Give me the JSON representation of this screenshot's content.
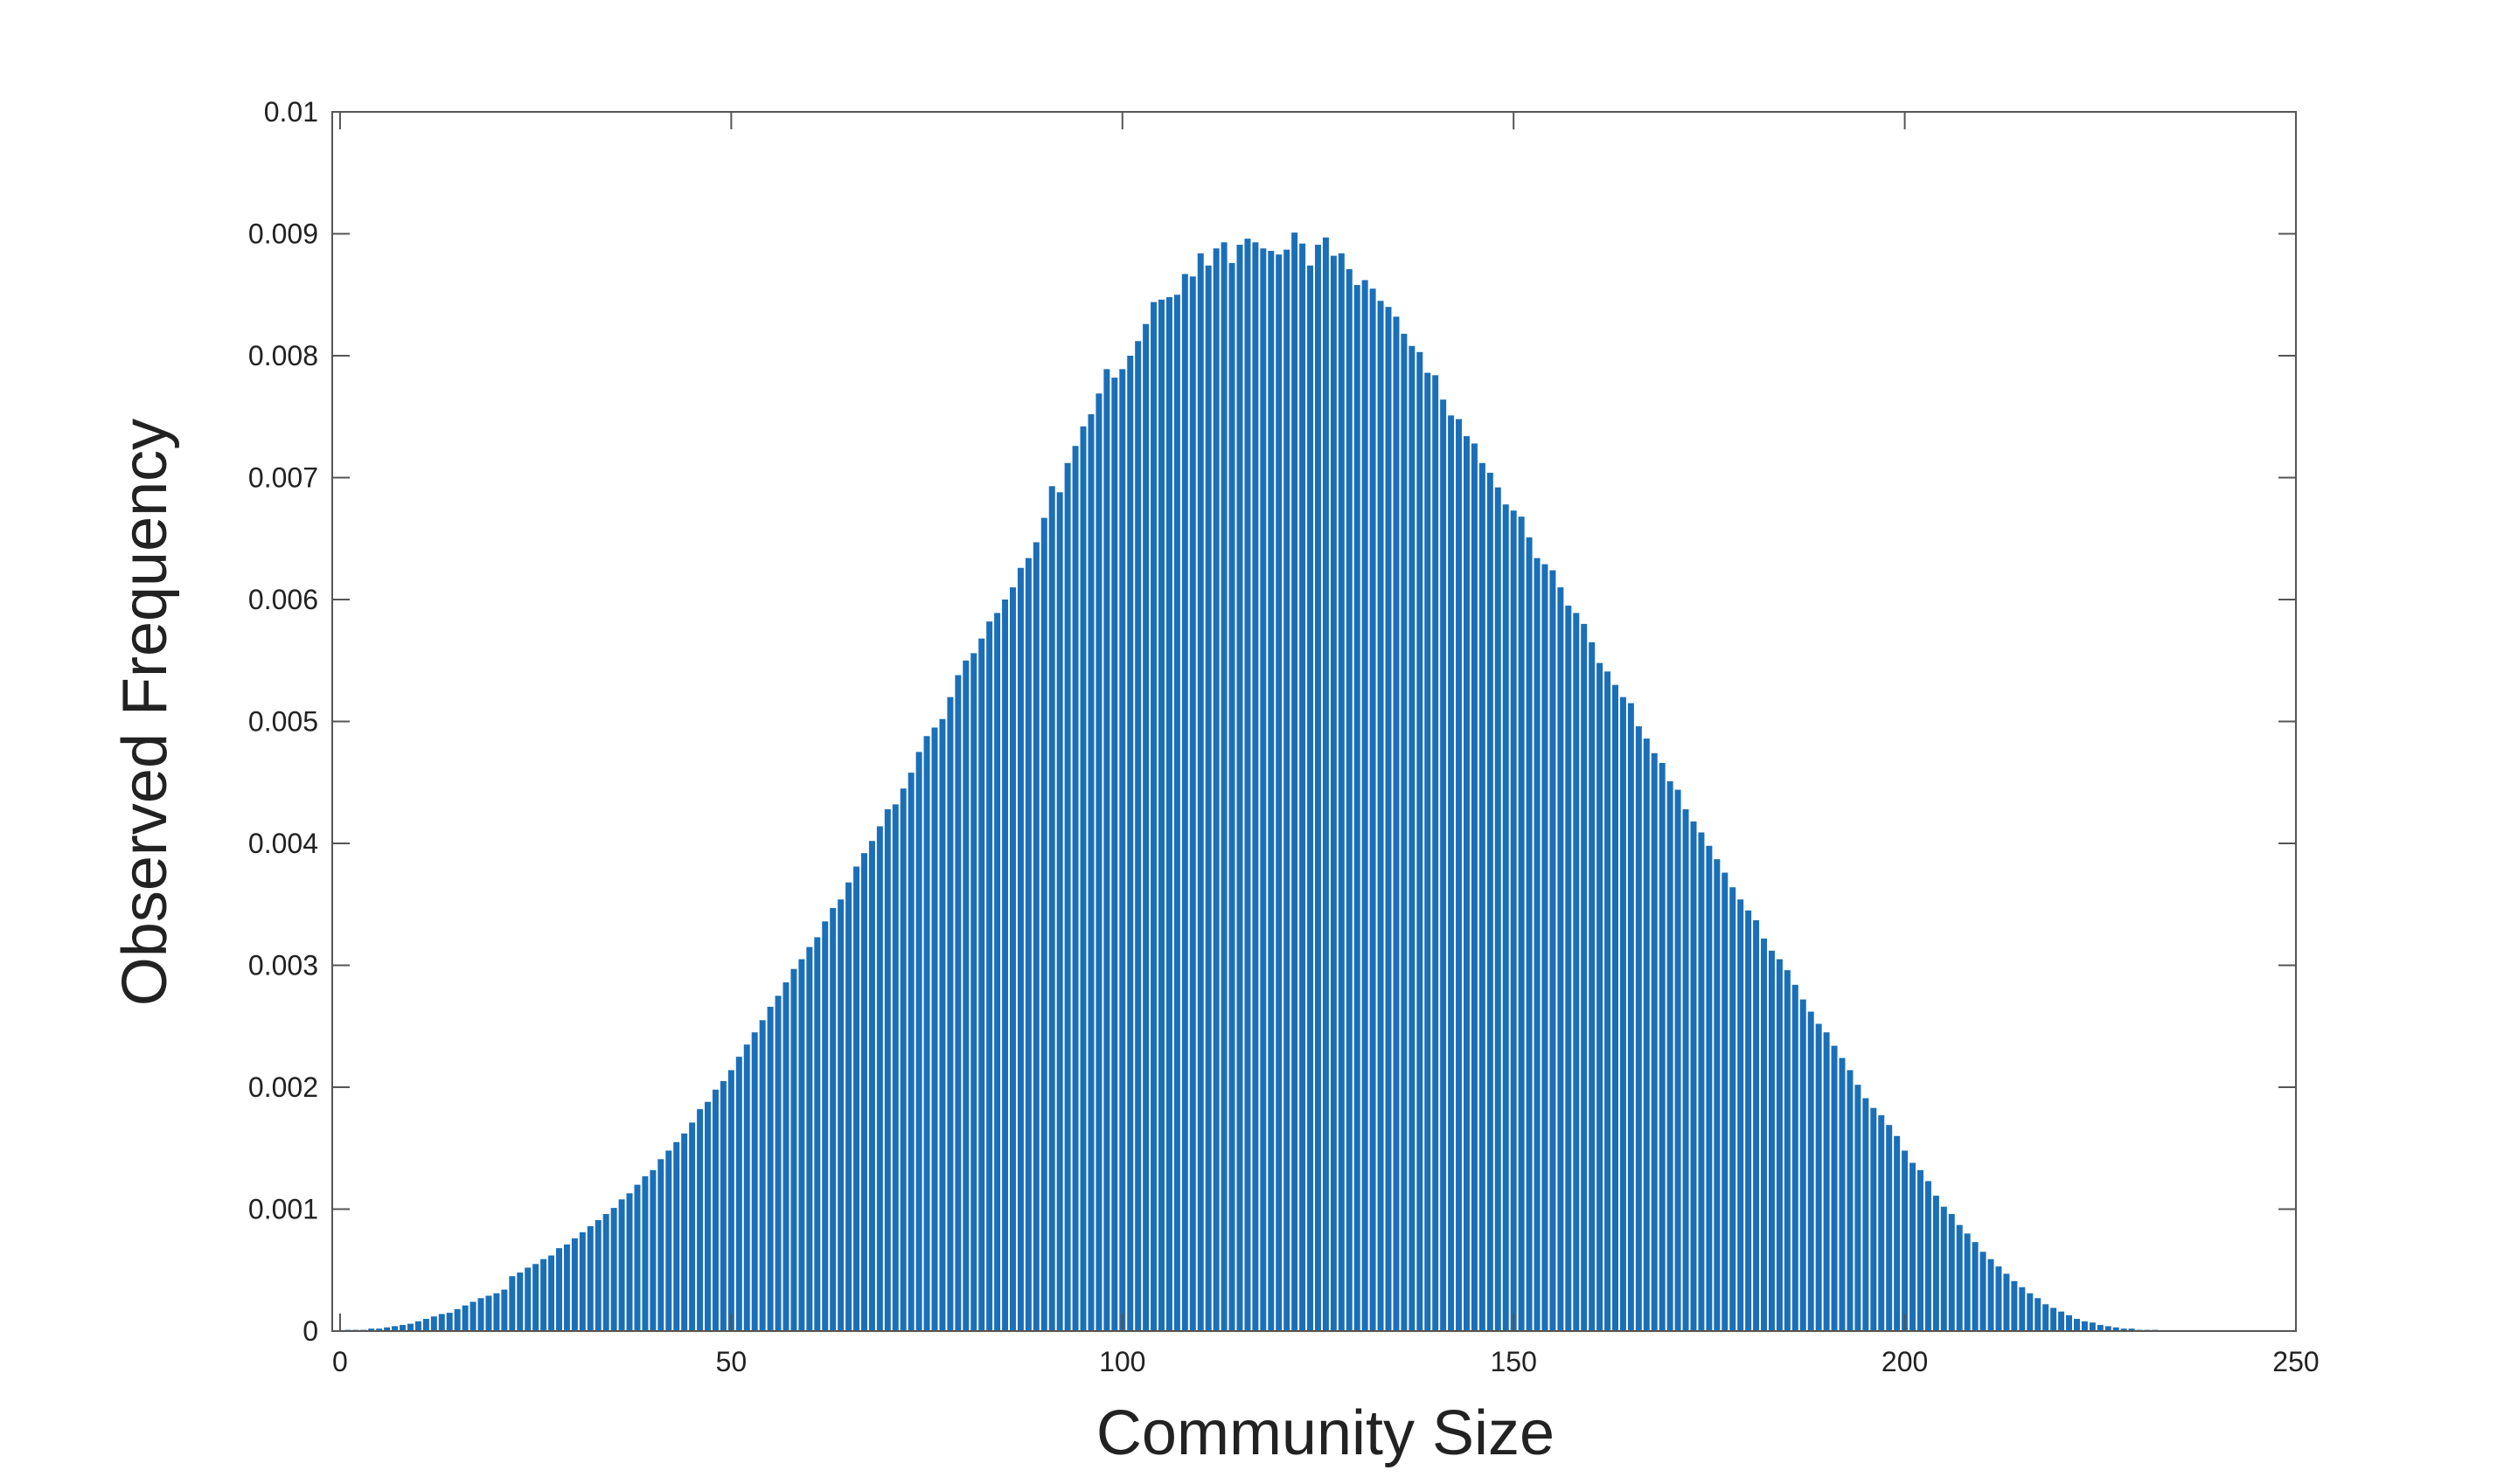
{
  "chart_data": {
    "type": "bar",
    "title": "",
    "xlabel": "Community Size",
    "ylabel": "Observed Frequency",
    "xlim": [
      -1,
      250
    ],
    "ylim": [
      0,
      0.01
    ],
    "xticks": [
      0,
      50,
      100,
      150,
      200,
      250
    ],
    "yticks": [
      0,
      0.001,
      0.002,
      0.003,
      0.004,
      0.005,
      0.006,
      0.007,
      0.008,
      0.009,
      0.01
    ],
    "xtick_labels": [
      "0",
      "50",
      "100",
      "150",
      "200",
      "250"
    ],
    "ytick_labels": [
      "0",
      "0.001",
      "0.002",
      "0.003",
      "0.004",
      "0.005",
      "0.006",
      "0.007",
      "0.008",
      "0.009",
      "0.01"
    ],
    "grid": false,
    "colors": {
      "bar": "#1a6fb8",
      "axis": "#555555"
    },
    "x_start": 1,
    "x_step": 1,
    "values": [
      1e-05,
      1e-05,
      1e-05,
      2e-05,
      2e-05,
      3e-05,
      4e-05,
      5e-05,
      6e-05,
      8e-05,
      0.0001,
      0.00012,
      0.00014,
      0.00015,
      0.00018,
      0.00021,
      0.00024,
      0.00027,
      0.00029,
      0.00031,
      0.00034,
      0.00045,
      0.00048,
      0.00052,
      0.00055,
      0.00059,
      0.00062,
      0.00068,
      0.00071,
      0.00076,
      0.00081,
      0.00086,
      0.00091,
      0.00096,
      0.00101,
      0.00108,
      0.00113,
      0.0012,
      0.00127,
      0.00132,
      0.00141,
      0.00148,
      0.00155,
      0.00162,
      0.00171,
      0.00182,
      0.00188,
      0.00198,
      0.00205,
      0.00214,
      0.00225,
      0.00235,
      0.00245,
      0.00255,
      0.00266,
      0.00275,
      0.00286,
      0.00297,
      0.00305,
      0.00315,
      0.00323,
      0.00336,
      0.00347,
      0.00354,
      0.00368,
      0.00381,
      0.00392,
      0.00402,
      0.00414,
      0.00428,
      0.00432,
      0.00445,
      0.00458,
      0.00475,
      0.00488,
      0.00495,
      0.00502,
      0.0052,
      0.00538,
      0.0055,
      0.00556,
      0.00568,
      0.00582,
      0.00589,
      0.006,
      0.0061,
      0.00626,
      0.00634,
      0.00647,
      0.00667,
      0.00693,
      0.00688,
      0.00712,
      0.00726,
      0.00742,
      0.00752,
      0.00769,
      0.00789,
      0.00782,
      0.00789,
      0.008,
      0.00812,
      0.00826,
      0.00844,
      0.00846,
      0.00848,
      0.0085,
      0.00867,
      0.00865,
      0.00884,
      0.00874,
      0.00888,
      0.00893,
      0.00876,
      0.00891,
      0.00896,
      0.00893,
      0.00888,
      0.00886,
      0.00883,
      0.00887,
      0.00901,
      0.00892,
      0.00874,
      0.00891,
      0.00897,
      0.00882,
      0.00884,
      0.00871,
      0.00858,
      0.00862,
      0.00855,
      0.00845,
      0.0084,
      0.00832,
      0.00818,
      0.00808,
      0.00803,
      0.00786,
      0.00784,
      0.00764,
      0.00751,
      0.00748,
      0.00734,
      0.00728,
      0.00712,
      0.00704,
      0.00692,
      0.00678,
      0.00673,
      0.00668,
      0.00651,
      0.00634,
      0.00629,
      0.00624,
      0.0061,
      0.00595,
      0.00589,
      0.0058,
      0.00565,
      0.00548,
      0.00541,
      0.0053,
      0.0052,
      0.00515,
      0.00496,
      0.00486,
      0.00474,
      0.00466,
      0.00451,
      0.00444,
      0.00428,
      0.00418,
      0.00409,
      0.00398,
      0.00387,
      0.00376,
      0.00364,
      0.00354,
      0.00345,
      0.00337,
      0.00322,
      0.00312,
      0.00305,
      0.00296,
      0.00284,
      0.00272,
      0.00262,
      0.00252,
      0.00245,
      0.00234,
      0.00224,
      0.00214,
      0.00202,
      0.00191,
      0.00183,
      0.00177,
      0.00169,
      0.0016,
      0.00148,
      0.00138,
      0.00132,
      0.00123,
      0.00111,
      0.00102,
      0.00096,
      0.00087,
      0.0008,
      0.00073,
      0.00065,
      0.00059,
      0.00053,
      0.00047,
      0.00041,
      0.00036,
      0.00031,
      0.00027,
      0.00022,
      0.00019,
      0.00016,
      0.00013,
      0.0001,
      8e-05,
      7e-05,
      5e-05,
      4e-05,
      3e-05,
      2e-05,
      2e-05,
      1e-05,
      1e-05,
      1e-05
    ]
  }
}
